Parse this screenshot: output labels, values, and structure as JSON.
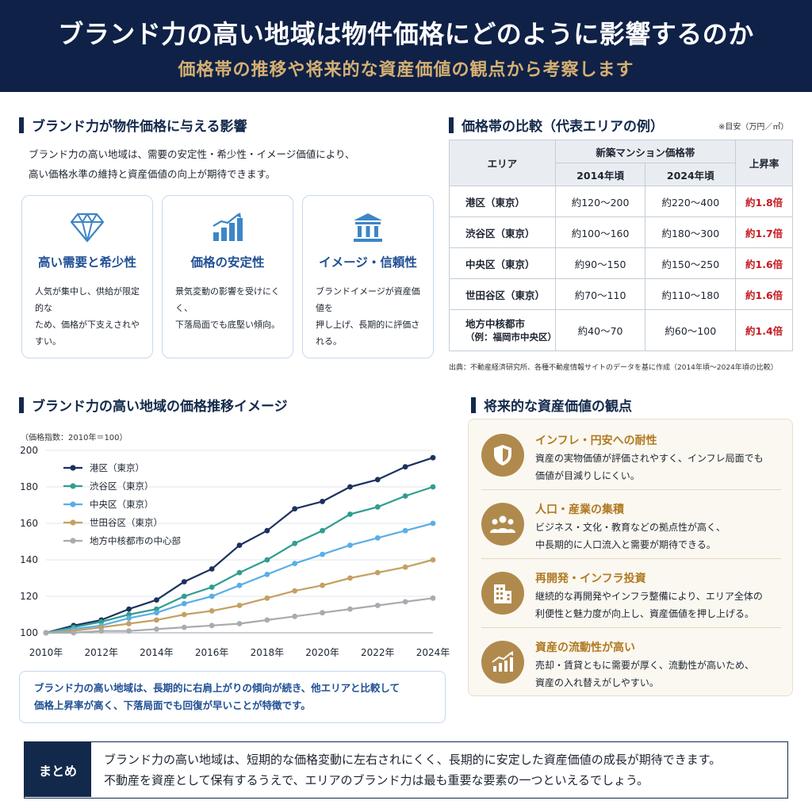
{
  "header": {
    "title": "ブランド力の高い地域は物件価格にどのように影響するのか",
    "subtitle": "価格帯の推移や将来的な資産価値の観点から考察します"
  },
  "impact": {
    "heading": "ブランド力が物件価格に与える影響",
    "intro_line1": "ブランド力の高い地域は、需要の安定性・希少性・イメージ価値により、",
    "intro_line2": "高い価格水準の維持と資産価値の向上が期待できます。",
    "cards": [
      {
        "icon": "diamond-icon",
        "title": "高い需要と希少性",
        "desc_line1": "人気が集中し、供給が限定的な",
        "desc_line2": "ため、価格が下支えされやすい。"
      },
      {
        "icon": "bar-chart-icon",
        "title": "価格の安定性",
        "desc_line1": "景気変動の影響を受けにくく、",
        "desc_line2": "下落局面でも底堅い傾向。"
      },
      {
        "icon": "institution-icon",
        "title": "イメージ・信頼性",
        "desc_line1": "ブランドイメージが資産価値を",
        "desc_line2": "押し上げ、長期的に評価される。"
      }
    ]
  },
  "price_table": {
    "heading": "価格帯の比較（代表エリアの例）",
    "unit_note": "※目安（万円／㎡）",
    "col_area": "エリア",
    "col_group": "新築マンション価格帯",
    "col_2014": "2014年頃",
    "col_2024": "2024年頃",
    "col_rate": "上昇率",
    "rows": [
      {
        "area": "港区（東京）",
        "area2": "",
        "p2014": "約120〜200",
        "p2024": "約220〜400",
        "rate": "約1.8倍"
      },
      {
        "area": "渋谷区（東京）",
        "area2": "",
        "p2014": "約100〜160",
        "p2024": "約180〜300",
        "rate": "約1.7倍"
      },
      {
        "area": "中央区（東京）",
        "area2": "",
        "p2014": "約90〜150",
        "p2024": "約150〜250",
        "rate": "約1.6倍"
      },
      {
        "area": "世田谷区（東京）",
        "area2": "",
        "p2014": "約70〜110",
        "p2024": "約110〜180",
        "rate": "約1.6倍"
      },
      {
        "area": "地方中核都市",
        "area2": "（例：福岡市中央区）",
        "p2014": "約40〜70",
        "p2024": "約60〜100",
        "rate": "約1.4倍"
      }
    ],
    "source": "出典：不動産経済研究所、各種不動産情報サイトのデータを基に作成（2014年頃〜2024年頃の比較）"
  },
  "trend": {
    "heading": "ブランド力の高い地域の価格推移イメージ",
    "index_label": "（価格指数：2010年＝100）",
    "note_line1": "ブランド力の高い地域は、長期的に右肩上がりの傾向が続き、他エリアと比較して",
    "note_line2": "価格上昇率が高く、下落局面でも回復が早いことが特徴です。"
  },
  "chart_data": {
    "type": "line",
    "x": [
      2010,
      2011,
      2012,
      2013,
      2014,
      2015,
      2016,
      2017,
      2018,
      2019,
      2020,
      2021,
      2022,
      2023,
      2024
    ],
    "x_tick_labels": [
      "2010年",
      "2012年",
      "2014年",
      "2016年",
      "2018年",
      "2020年",
      "2022年",
      "2024年"
    ],
    "y_ticks": [
      100,
      120,
      140,
      160,
      180,
      200
    ],
    "ylim": [
      100,
      200
    ],
    "legend_position": "top-left",
    "series": [
      {
        "name": "港区（東京）",
        "color": "#1b325e",
        "values": [
          100,
          104,
          107,
          113,
          118,
          128,
          135,
          148,
          156,
          168,
          172,
          180,
          184,
          191,
          196
        ]
      },
      {
        "name": "渋谷区（東京）",
        "color": "#2f9e8f",
        "values": [
          100,
          103,
          106,
          110,
          113,
          120,
          125,
          133,
          140,
          149,
          156,
          165,
          169,
          175,
          180
        ]
      },
      {
        "name": "中央区（東京）",
        "color": "#5aaee6",
        "values": [
          100,
          102,
          104,
          108,
          111,
          116,
          120,
          126,
          132,
          138,
          143,
          148,
          152,
          156,
          160
        ]
      },
      {
        "name": "世田谷区（東京）",
        "color": "#c4a062",
        "values": [
          100,
          101,
          103,
          105,
          107,
          110,
          112,
          115,
          119,
          123,
          126,
          130,
          133,
          136,
          140
        ]
      },
      {
        "name": "地方中核都市の中心部",
        "color": "#a8abaf",
        "values": [
          100,
          100,
          101,
          101,
          102,
          103,
          104,
          105,
          107,
          109,
          111,
          113,
          115,
          117,
          119
        ]
      }
    ]
  },
  "future": {
    "heading": "将来的な資産価値の観点",
    "items": [
      {
        "icon": "shield-icon",
        "title": "インフレ・円安への耐性",
        "desc_line1": "資産の実物価値が評価されやすく、インフレ局面でも",
        "desc_line2": "価値が目減りしにくい。"
      },
      {
        "icon": "people-icon",
        "title": "人口・産業の集積",
        "desc_line1": "ビジネス・文化・教育などの拠点性が高く、",
        "desc_line2": "中長期的に人口流入と需要が期待できる。"
      },
      {
        "icon": "building-icon",
        "title": "再開発・インフラ投資",
        "desc_line1": "継続的な再開発やインフラ整備により、エリア全体の",
        "desc_line2": "利便性と魅力度が向上し、資産価値を押し上げる。"
      },
      {
        "icon": "rising-chart-icon",
        "title": "資産の流動性が高い",
        "desc_line1": "売却・賃貸ともに需要が厚く、流動性が高いため、",
        "desc_line2": "資産の入れ替えがしやすい。"
      }
    ]
  },
  "summary": {
    "label": "まとめ",
    "line1": "ブランド力の高い地域は、短期的な価格変動に左右されにくく、長期的に安定した資産価値の成長が期待できます。",
    "line2": "不動産を資産として保有するうえで、エリアのブランド力は最も重要な要素の一つといえるでしょう。"
  }
}
